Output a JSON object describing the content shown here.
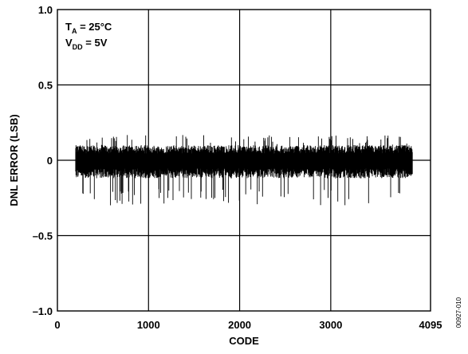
{
  "chart_data": {
    "type": "line",
    "xlabel": "CODE",
    "ylabel": "DNL ERROR (LSB)",
    "xlim": [
      0,
      4095
    ],
    "ylim": [
      -1.0,
      1.0
    ],
    "x_ticks": [
      0,
      1000,
      2000,
      3000,
      4095
    ],
    "x_tick_labels": [
      "0",
      "1000",
      "2000",
      "3000",
      "4095"
    ],
    "y_ticks": [
      1.0,
      0.5,
      0,
      -0.5,
      -1.0
    ],
    "y_tick_labels": [
      "1.0",
      "0.5",
      "0",
      "–0.5",
      "–1.0"
    ],
    "grid": true,
    "series": [
      {
        "code_start": 200,
        "code_end": 3900,
        "typical_band": [
          -0.12,
          0.1
        ],
        "peak_max": 0.17,
        "peak_min": -0.3
      }
    ],
    "annotations": {
      "line1": {
        "main": "T",
        "sub": "A",
        "rest": " = 25°C"
      },
      "line2": {
        "main": "V",
        "sub": "DD",
        "rest": " = 5V"
      }
    },
    "figure_id": "00927-010"
  },
  "colors": {
    "trace": "#000000",
    "grid": "#000000",
    "background": "#ffffff"
  }
}
